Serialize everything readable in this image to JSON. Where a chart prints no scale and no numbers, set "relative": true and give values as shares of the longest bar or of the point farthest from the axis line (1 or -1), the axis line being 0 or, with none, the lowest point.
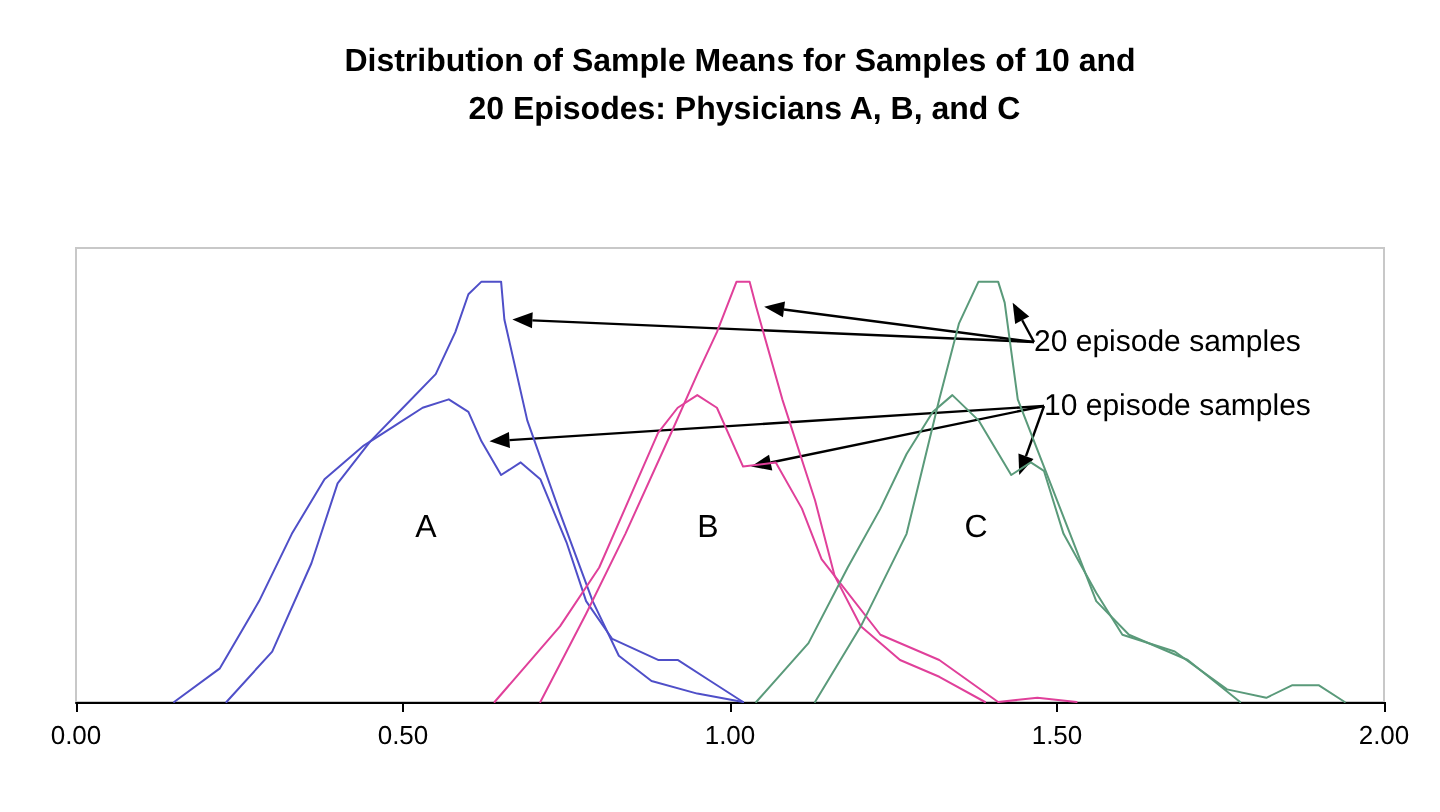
{
  "chart_data": {
    "type": "line",
    "title": "Distribution of Sample Means for Samples of 10 and 20 Episodes: Physicians A, B, and C",
    "relative": true,
    "xlim": [
      0,
      2
    ],
    "xticks": [
      {
        "value": 0,
        "label": "0.00"
      },
      {
        "value": 0.5,
        "label": "0.50"
      },
      {
        "value": 1,
        "label": "1.00"
      },
      {
        "value": 1.5,
        "label": "1.50"
      },
      {
        "value": 2,
        "label": "2.00"
      }
    ],
    "grid": false,
    "series": [
      {
        "color": "#4f4fc8",
        "x": [
          0.23,
          0.3,
          0.36,
          0.4,
          0.45,
          0.5,
          0.55,
          0.58,
          0.6,
          0.62,
          0.65,
          0.655,
          0.69,
          0.74,
          0.79,
          0.83,
          0.88,
          0.95,
          1.02
        ],
        "values": [
          0,
          0.12,
          0.33,
          0.52,
          0.62,
          0.7,
          0.78,
          0.88,
          0.97,
          1.0,
          1.0,
          0.91,
          0.67,
          0.45,
          0.24,
          0.11,
          0.05,
          0.02,
          0
        ]
      },
      {
        "color": "#4f4fc8",
        "x": [
          0.15,
          0.22,
          0.28,
          0.33,
          0.38,
          0.44,
          0.49,
          0.53,
          0.57,
          0.6,
          0.62,
          0.65,
          0.68,
          0.71,
          0.75,
          0.78,
          0.82,
          0.89,
          0.92,
          0.97,
          1.02
        ],
        "values": [
          0,
          0.08,
          0.24,
          0.4,
          0.53,
          0.61,
          0.66,
          0.7,
          0.72,
          0.69,
          0.62,
          0.54,
          0.57,
          0.53,
          0.38,
          0.24,
          0.15,
          0.1,
          0.1,
          0.05,
          0
        ]
      },
      {
        "color": "#e0409a",
        "x": [
          0.71,
          0.78,
          0.84,
          0.91,
          0.95,
          0.98,
          1.01,
          1.03,
          1.04,
          1.08,
          1.13,
          1.16,
          1.2,
          1.26,
          1.32,
          1.39
        ],
        "values": [
          0,
          0.21,
          0.4,
          0.64,
          0.78,
          0.88,
          1.0,
          1.0,
          0.94,
          0.72,
          0.48,
          0.3,
          0.18,
          0.1,
          0.06,
          0
        ]
      },
      {
        "color": "#e0409a",
        "x": [
          0.64,
          0.74,
          0.8,
          0.89,
          0.92,
          0.95,
          0.98,
          1.02,
          1.07,
          1.11,
          1.14,
          1.17,
          1.23,
          1.32,
          1.41,
          1.47,
          1.53
        ],
        "values": [
          0,
          0.18,
          0.32,
          0.64,
          0.7,
          0.73,
          0.7,
          0.56,
          0.57,
          0.46,
          0.34,
          0.28,
          0.16,
          0.1,
          0,
          0.01,
          0
        ]
      },
      {
        "color": "#5a9a7a",
        "x": [
          1.13,
          1.2,
          1.27,
          1.32,
          1.35,
          1.38,
          1.41,
          1.42,
          1.44,
          1.48,
          1.52,
          1.56,
          1.61,
          1.7,
          1.78
        ],
        "values": [
          0,
          0.18,
          0.4,
          0.72,
          0.9,
          1.0,
          1.0,
          0.95,
          0.72,
          0.56,
          0.4,
          0.24,
          0.16,
          0.1,
          0
        ]
      },
      {
        "color": "#5a9a7a",
        "x": [
          1.04,
          1.12,
          1.18,
          1.23,
          1.27,
          1.31,
          1.34,
          1.38,
          1.43,
          1.46,
          1.48,
          1.51,
          1.56,
          1.6,
          1.68,
          1.76,
          1.82,
          1.86,
          1.9,
          1.94
        ],
        "values": [
          0,
          0.14,
          0.32,
          0.46,
          0.59,
          0.69,
          0.73,
          0.67,
          0.54,
          0.57,
          0.55,
          0.4,
          0.26,
          0.16,
          0.12,
          0.03,
          0.01,
          0.04,
          0.04,
          0
        ]
      }
    ],
    "annotations": [
      "20 episode samples",
      "10 episode samples",
      "A",
      "B",
      "C"
    ]
  }
}
